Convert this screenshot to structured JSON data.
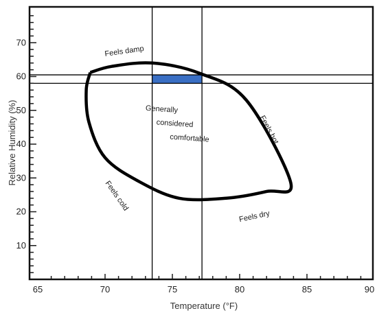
{
  "chart_data": {
    "type": "line",
    "xlabel": "Temperature (°F)",
    "ylabel": "Relative Humidity (%)",
    "xlim": [
      65,
      90
    ],
    "ylim": [
      0,
      80
    ],
    "xticks": [
      "65",
      "70",
      "75",
      "80",
      "85",
      "90"
    ],
    "yticks": [
      "10",
      "20",
      "30",
      "40",
      "50",
      "60",
      "70"
    ],
    "grid": false,
    "series": [
      {
        "kind": "comfort-zone-outline",
        "points": [
          [
            68.9,
            61.2
          ],
          [
            70.5,
            63.0
          ],
          [
            73.5,
            64.0
          ],
          [
            77.0,
            61.0
          ],
          [
            80.5,
            53.0
          ],
          [
            83.8,
            28.5
          ],
          [
            82.0,
            26.0
          ],
          [
            79.0,
            24.0
          ],
          [
            75.5,
            24.0
          ],
          [
            72.5,
            29.0
          ],
          [
            70.0,
            36.0
          ],
          [
            68.8,
            46.5
          ],
          [
            68.6,
            56.0
          ],
          [
            68.9,
            61.2
          ]
        ]
      }
    ],
    "reference_lines": {
      "vertical_x": [
        73.5,
        77.2
      ],
      "horizontal_y": [
        60.5,
        58.0
      ]
    },
    "highlight_region": {
      "x": [
        73.5,
        77.2
      ],
      "y": [
        58.0,
        60.5
      ],
      "color": "#3a6fc4"
    },
    "annotations": [
      {
        "text": "Feels damp",
        "x": 70.0,
        "y": 66.0,
        "rotate": -8
      },
      {
        "text": "Feels hot",
        "x": 81.5,
        "y": 48.0,
        "rotate": 62
      },
      {
        "text": "Generally",
        "x": 73.0,
        "y": 50.0,
        "rotate": 4
      },
      {
        "text": "considered",
        "x": 73.8,
        "y": 45.8,
        "rotate": 4
      },
      {
        "text": "comfortable",
        "x": 74.8,
        "y": 41.5,
        "rotate": 4
      },
      {
        "text": "Feels cold",
        "x": 70.0,
        "y": 28.5,
        "rotate": 55
      },
      {
        "text": "Feels dry",
        "x": 80.0,
        "y": 17.0,
        "rotate": -12
      }
    ]
  }
}
